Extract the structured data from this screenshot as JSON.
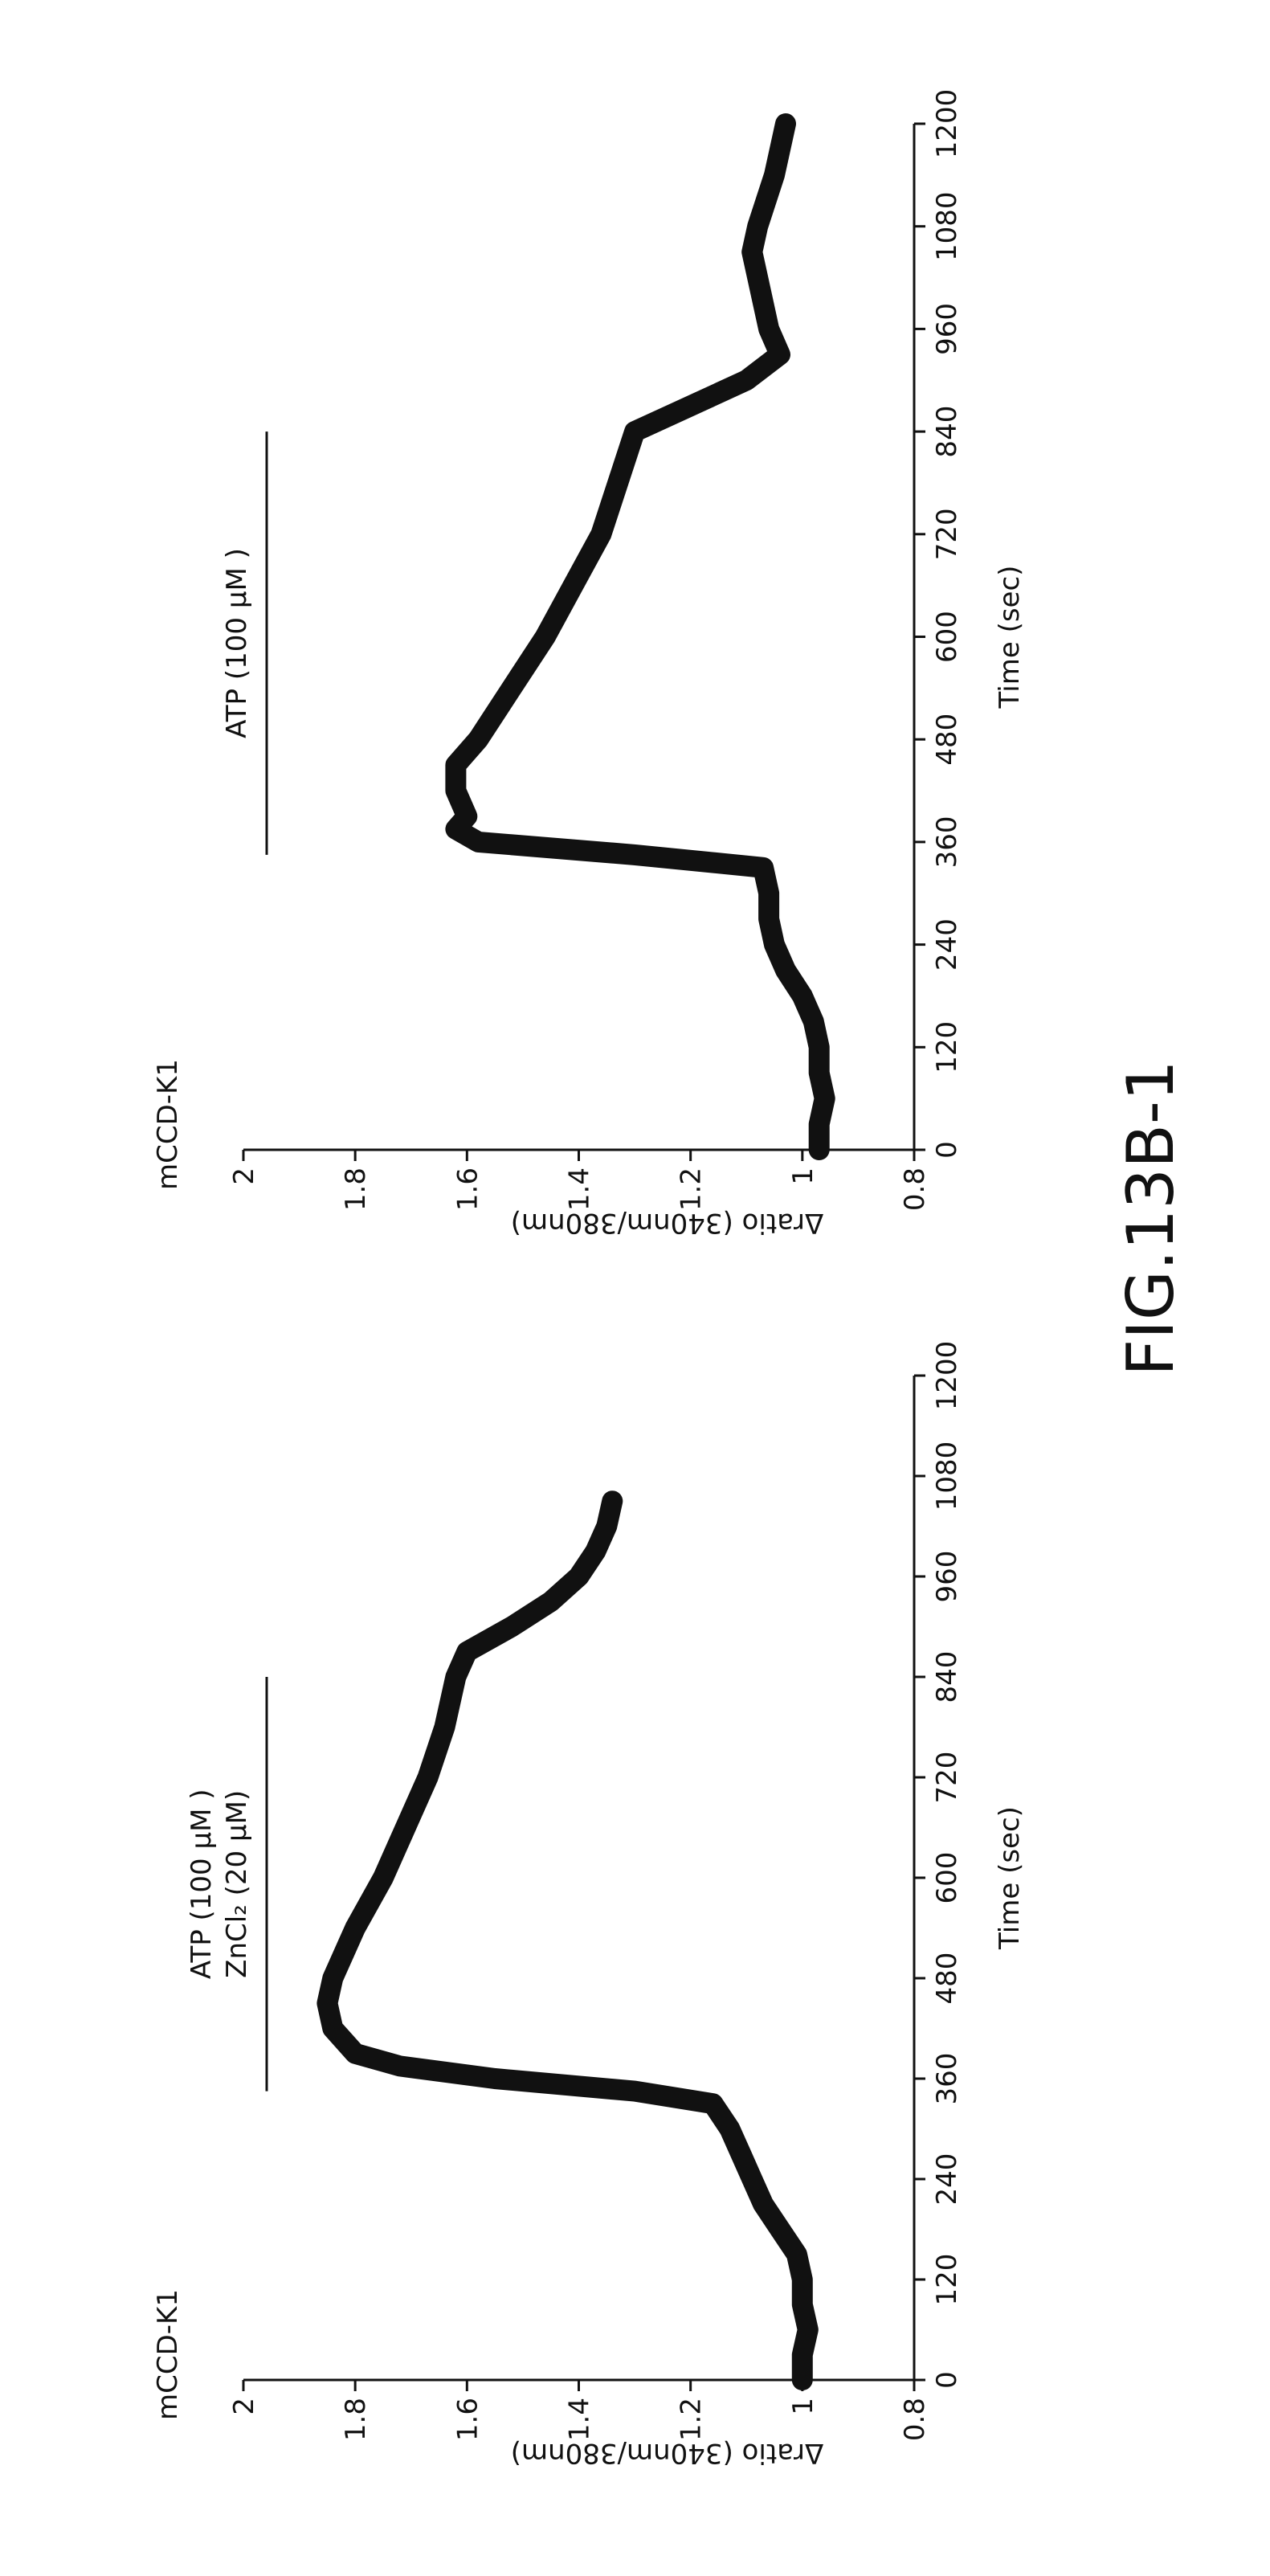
{
  "chart_data": [
    {
      "type": "line",
      "title": "mCCD-K1",
      "x_label": "Time (sec)",
      "y_label": "Δratio (340nm/380nm)",
      "treatment": {
        "labels": [
          "ATP (100 μM )",
          "ZnCl₂ (20 μM)"
        ],
        "start": 345,
        "end": 840
      },
      "x": [
        0,
        30,
        60,
        90,
        120,
        150,
        180,
        210,
        240,
        270,
        300,
        330,
        345,
        360,
        375,
        390,
        420,
        450,
        480,
        540,
        600,
        660,
        720,
        780,
        840,
        870,
        900,
        930,
        960,
        990,
        1020,
        1050
      ],
      "series": [
        {
          "color": "#111111",
          "values": [
            1.0,
            1.0,
            0.99,
            1.0,
            1.0,
            1.01,
            1.04,
            1.07,
            1.09,
            1.11,
            1.13,
            1.16,
            1.3,
            1.55,
            1.72,
            1.8,
            1.84,
            1.85,
            1.84,
            1.8,
            1.75,
            1.71,
            1.67,
            1.64,
            1.62,
            1.6,
            1.52,
            1.45,
            1.4,
            1.37,
            1.35,
            1.34
          ]
        }
      ],
      "xlim": [
        0,
        1200
      ],
      "xticks": [
        0,
        120,
        240,
        360,
        480,
        600,
        720,
        840,
        960,
        1080,
        1200
      ],
      "ylim": [
        0.8,
        2
      ],
      "yticks": [
        0.8,
        1,
        1.2,
        1.4,
        1.6,
        1.8,
        2
      ]
    },
    {
      "type": "line",
      "title": "mCCD-K1",
      "x_label": "Time (sec)",
      "y_label": "Δratio (340nm/380nm)",
      "treatment": {
        "labels": [
          "ATP (100 μM )"
        ],
        "start": 345,
        "end": 840
      },
      "x": [
        0,
        30,
        60,
        90,
        120,
        150,
        180,
        210,
        240,
        270,
        300,
        330,
        345,
        360,
        375,
        390,
        420,
        450,
        480,
        540,
        600,
        660,
        720,
        780,
        840,
        870,
        900,
        930,
        960,
        1020,
        1050,
        1080,
        1140,
        1200
      ],
      "series": [
        {
          "color": "#111111",
          "values": [
            0.97,
            0.97,
            0.96,
            0.97,
            0.97,
            0.98,
            1.0,
            1.03,
            1.05,
            1.06,
            1.06,
            1.07,
            1.3,
            1.58,
            1.62,
            1.6,
            1.62,
            1.62,
            1.58,
            1.52,
            1.46,
            1.41,
            1.36,
            1.33,
            1.3,
            1.2,
            1.1,
            1.04,
            1.06,
            1.08,
            1.09,
            1.08,
            1.05,
            1.03
          ]
        }
      ],
      "xlim": [
        0,
        1200
      ],
      "xticks": [
        0,
        120,
        240,
        360,
        480,
        600,
        720,
        840,
        960,
        1080,
        1200
      ],
      "ylim": [
        0.8,
        2
      ],
      "yticks": [
        0.8,
        1,
        1.2,
        1.4,
        1.6,
        1.8,
        2
      ]
    }
  ],
  "figure_label": "FIG.13B-1"
}
